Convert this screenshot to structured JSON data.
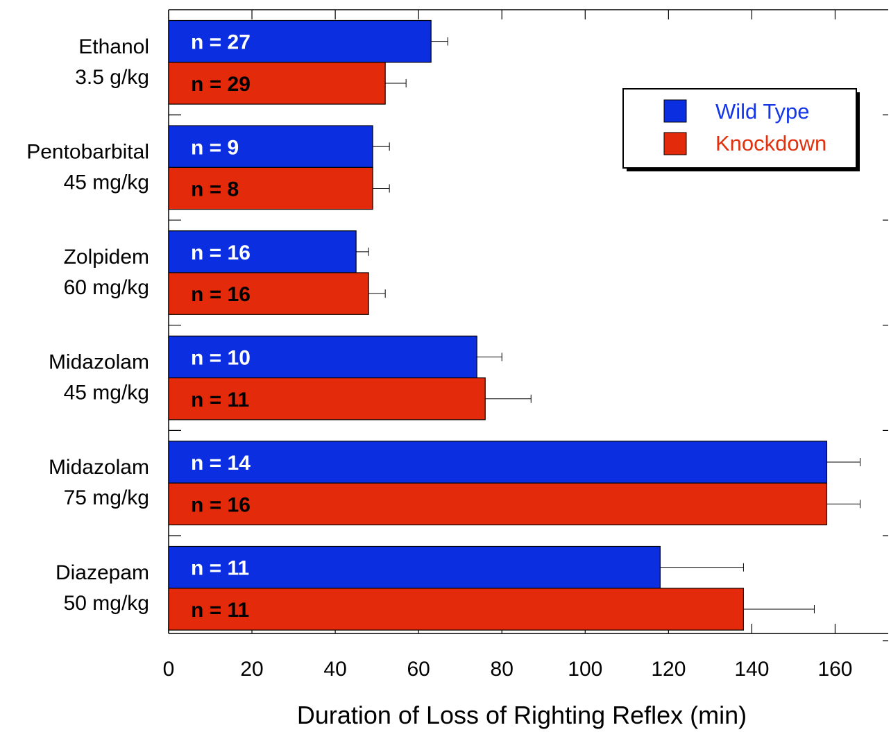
{
  "chart_data": {
    "type": "bar",
    "orientation": "horizontal",
    "xlabel": "Duration of Loss of Righting Reflex (min)",
    "xlim": [
      0,
      173
    ],
    "xticks": [
      0,
      20,
      40,
      60,
      80,
      100,
      120,
      140,
      160
    ],
    "grid": false,
    "legend_position": "top-right",
    "categories": [
      {
        "line1": "Ethanol",
        "line2": "3.5 g/kg"
      },
      {
        "line1": "Pentobarbital",
        "line2": "45 mg/kg"
      },
      {
        "line1": "Zolpidem",
        "line2": "60 mg/kg"
      },
      {
        "line1": "Midazolam",
        "line2": "45 mg/kg"
      },
      {
        "line1": "Midazolam",
        "line2": "75 mg/kg"
      },
      {
        "line1": "Diazepam",
        "line2": "50 mg/kg"
      }
    ],
    "series": [
      {
        "name": "Wild Type",
        "color": "#0a2ee0",
        "text_color": "#ffffff",
        "values": [
          63,
          49,
          45,
          74,
          158,
          118
        ],
        "errors": [
          4,
          4,
          3,
          6,
          8,
          20
        ],
        "n_labels": [
          "n = 27",
          "n = 9",
          "n = 16",
          "n = 10",
          "n = 14",
          "n = 11"
        ]
      },
      {
        "name": "Knockdown",
        "color": "#e32a0a",
        "text_color": "#000000",
        "values": [
          52,
          49,
          48,
          76,
          158,
          138
        ],
        "errors": [
          5,
          4,
          4,
          11,
          8,
          17
        ],
        "n_labels": [
          "n = 29",
          "n = 8",
          "n = 16",
          "n = 11",
          "n = 16",
          "n = 11"
        ]
      }
    ]
  },
  "colors": {
    "wild_type_text": "#1436e6",
    "knockdown_text": "#e0320f"
  }
}
